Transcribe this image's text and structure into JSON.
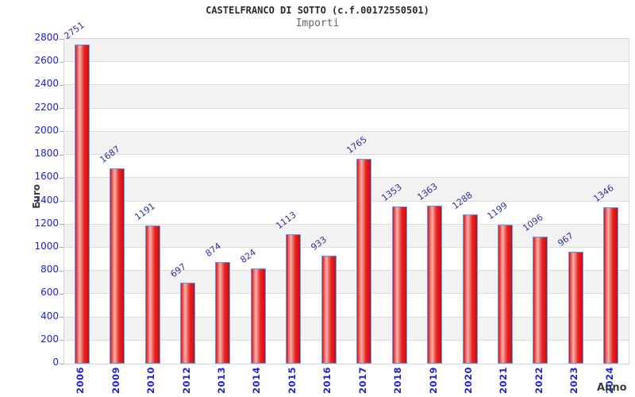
{
  "chart_data": {
    "type": "bar",
    "title": "CASTELFRANCO DI SOTTO (c.f.00172550501)",
    "subtitle": "Importi",
    "xlabel": "Anno",
    "ylabel": "Euro",
    "categories": [
      "2006",
      "2009",
      "2010",
      "2012",
      "2013",
      "2014",
      "2015",
      "2016",
      "2017",
      "2018",
      "2019",
      "2020",
      "2021",
      "2022",
      "2023",
      "2024"
    ],
    "values": [
      2751,
      1687,
      1191,
      697,
      874,
      824,
      1113,
      933,
      1765,
      1353,
      1363,
      1288,
      1199,
      1096,
      967,
      1346
    ],
    "ylim": [
      0,
      2800
    ],
    "ytick_step": 200,
    "yticks": [
      0,
      200,
      400,
      600,
      800,
      1000,
      1200,
      1400,
      1600,
      1800,
      2000,
      2200,
      2400,
      2600,
      2800
    ],
    "legend": "none",
    "grid": "horizontal-bands",
    "colors": {
      "bar_fill": "#e31b1b",
      "bar_highlight": "#f5b3ab",
      "bar_border": "#5ba1f0",
      "axis_tick_text": "#2121cf",
      "value_label_text": "#333399",
      "band_gray": "#f2f2f2",
      "plot_border": "#d6d6d6",
      "title_text": "#2b2b2b",
      "subtitle_text": "#666666",
      "axis_name_text": "#3c3c3c"
    }
  }
}
